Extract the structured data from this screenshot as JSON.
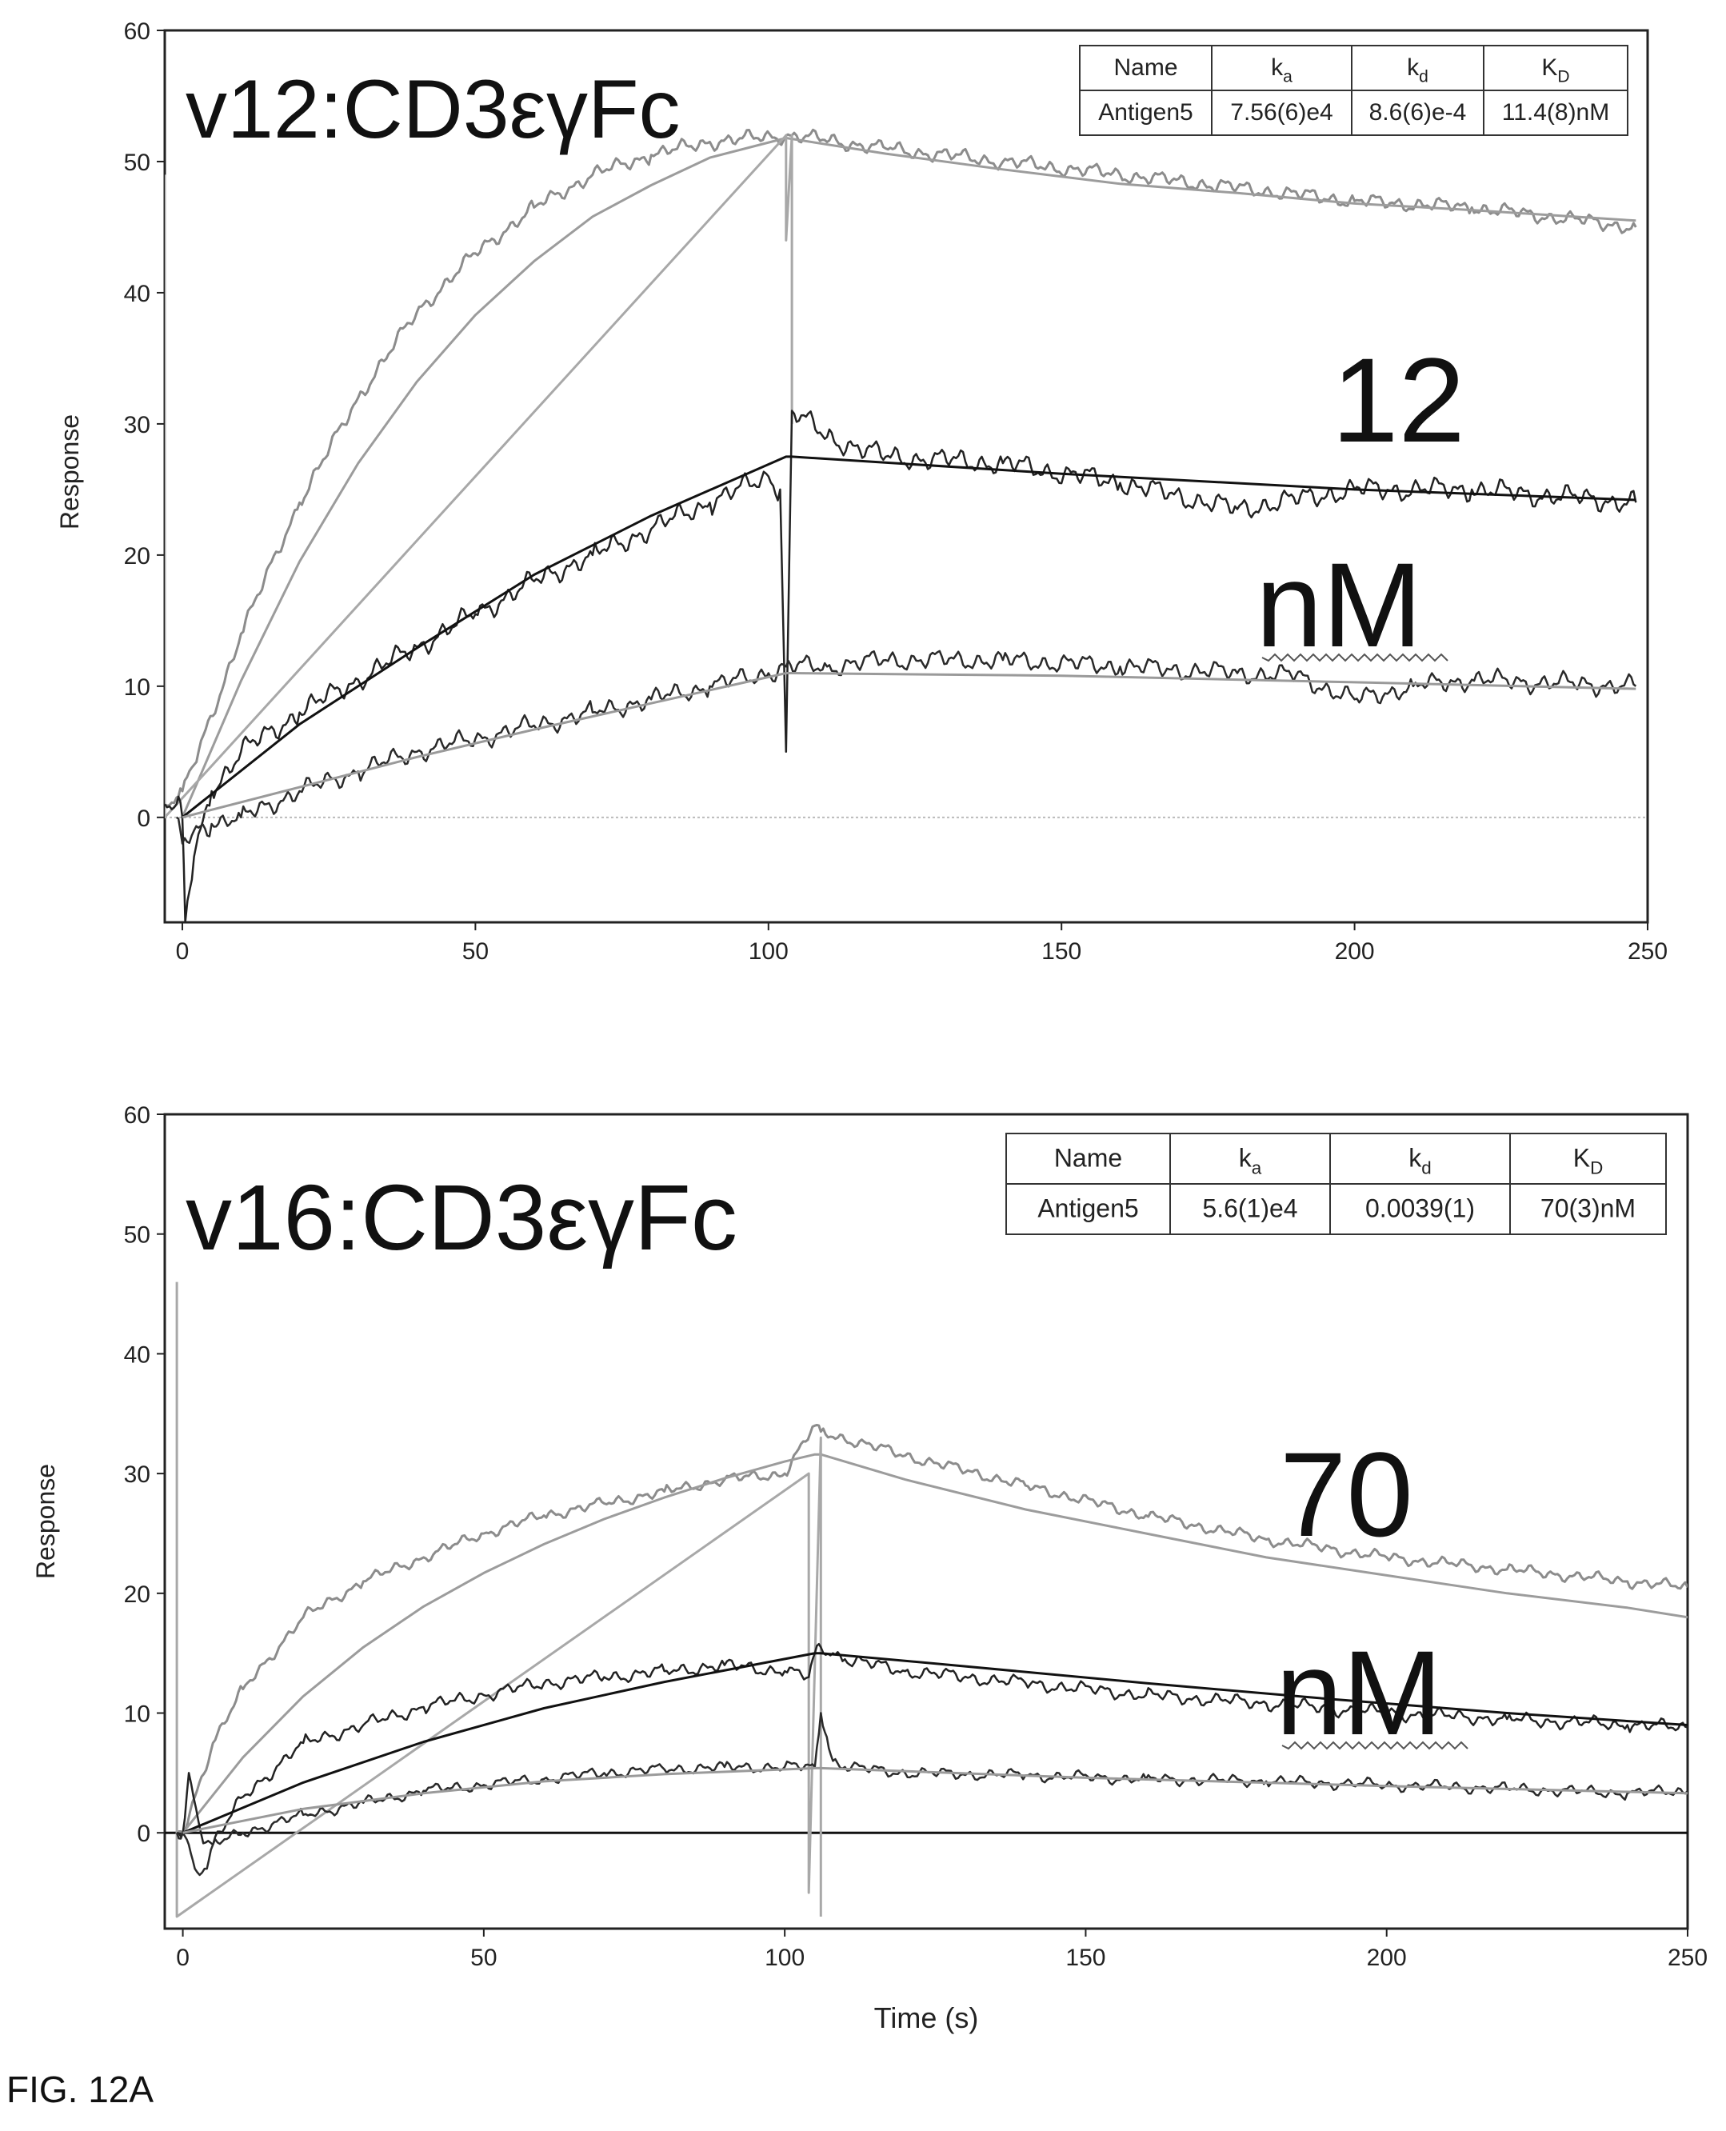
{
  "figure_label": "FIG. 12A",
  "chart_data": [
    {
      "type": "line",
      "title": "v12:CD3εγFc",
      "annotation": [
        "12",
        "nM"
      ],
      "xlabel": "",
      "ylabel": "Response",
      "xlim": [
        -3,
        250
      ],
      "ylim": [
        -8,
        60
      ],
      "xticks": [
        0,
        50,
        100,
        150,
        200,
        250
      ],
      "yticks": [
        0,
        10,
        20,
        30,
        40,
        50,
        60
      ],
      "zero_line": "dotted",
      "injection_marker": {
        "x": 0,
        "y": 49
      },
      "table": {
        "headers": [
          "Name",
          "k",
          "k",
          "K"
        ],
        "header_subscripts": [
          "",
          "a",
          "d",
          "D"
        ],
        "row": [
          "Antigen5",
          "7.56(6)e4",
          "8.6(6)e-4",
          "11.4(8)nM"
        ]
      },
      "series": [
        {
          "color": "#8c8c8c",
          "width": 3,
          "noise": 0.6,
          "phase": 1,
          "x": [
            -3,
            -1,
            0,
            2,
            10,
            20,
            30,
            40,
            50,
            60,
            70,
            80,
            90,
            103,
            104,
            120,
            140,
            160,
            180,
            200,
            220,
            248
          ],
          "y": [
            1,
            1.5,
            2,
            4,
            14,
            24,
            32,
            38.5,
            43,
            46.5,
            49,
            50.5,
            51.5,
            52,
            52,
            51,
            50,
            49,
            48,
            47,
            46.5,
            45
          ]
        },
        {
          "color": "#9c9c9c",
          "width": 3,
          "noise": 0,
          "x": [
            0,
            10,
            20,
            30,
            40,
            50,
            60,
            70,
            80,
            90,
            103,
            120,
            140,
            160,
            180,
            200,
            220,
            248
          ],
          "y": [
            0,
            10.4,
            19.5,
            27,
            33.2,
            38.3,
            42.4,
            45.8,
            48.2,
            50.3,
            51.8,
            50.6,
            49.4,
            48.3,
            47.6,
            46.8,
            46.3,
            45.5
          ]
        },
        {
          "color": "#a8a8a8",
          "width": 3,
          "noise": 0,
          "x": [
            -3,
            -3,
            103,
            103,
            104,
            104
          ],
          "y": [
            49,
            0,
            52,
            44,
            52,
            30
          ]
        },
        {
          "color": "#222222",
          "width": 2.5,
          "noise": 0.9,
          "phase": 2,
          "x": [
            -3,
            -1,
            0,
            0.5,
            2,
            5,
            10,
            20,
            30,
            40,
            50,
            60,
            70,
            80,
            90,
            100,
            102,
            103,
            104,
            110,
            120,
            140,
            160,
            180,
            200,
            220,
            248
          ],
          "y": [
            1,
            1,
            0,
            -8,
            -3,
            2,
            5,
            8,
            10.5,
            13,
            15.5,
            18,
            20,
            22,
            24,
            26,
            25,
            5,
            31,
            29,
            27.5,
            27,
            25.5,
            23.5,
            25,
            25,
            24
          ]
        },
        {
          "color": "#111111",
          "width": 3,
          "noise": 0,
          "x": [
            0,
            20,
            40,
            60,
            80,
            103,
            104,
            150,
            200,
            248
          ],
          "y": [
            0,
            7.1,
            12.9,
            18.5,
            23,
            27.5,
            27.5,
            26.2,
            25,
            24.2
          ]
        },
        {
          "color": "#2a2a2a",
          "width": 2.5,
          "noise": 0.8,
          "phase": 3,
          "x": [
            -1,
            0,
            2,
            5,
            10,
            20,
            30,
            40,
            50,
            60,
            70,
            80,
            90,
            100,
            103,
            110,
            120,
            140,
            160,
            180,
            190,
            200,
            210,
            220,
            248
          ],
          "y": [
            0,
            -2,
            -1,
            -0.5,
            0,
            2,
            3.5,
            5,
            6,
            7,
            8,
            9,
            10,
            11,
            11.5,
            11.5,
            12,
            12,
            11.5,
            11,
            10.8,
            9,
            10,
            10.5,
            10
          ]
        },
        {
          "color": "#9a9a9a",
          "width": 3,
          "noise": 0,
          "x": [
            0,
            20,
            40,
            60,
            80,
            103,
            104,
            150,
            200,
            248
          ],
          "y": [
            0,
            2.3,
            4.6,
            6.7,
            8.7,
            11,
            11,
            10.8,
            10.3,
            9.8
          ]
        }
      ]
    },
    {
      "type": "line",
      "title": "v16:CD3εγFc",
      "annotation": [
        "70",
        "nM"
      ],
      "xlabel": "Time (s)",
      "ylabel": "Response",
      "xlim": [
        -3,
        250
      ],
      "ylim": [
        -8,
        60
      ],
      "xticks": [
        0,
        50,
        100,
        150,
        200,
        250
      ],
      "yticks": [
        0,
        10,
        20,
        30,
        40,
        50,
        60
      ],
      "zero_line": "solid",
      "injection_marker": {
        "x": 0,
        "y": 46
      },
      "table": {
        "headers": [
          "Name",
          "k",
          "k",
          "K"
        ],
        "header_subscripts": [
          "",
          "a",
          "d",
          "D"
        ],
        "row": [
          "Antigen5",
          "5.6(1)e4",
          "0.0039(1)",
          "70(3)nM"
        ]
      },
      "series": [
        {
          "color": "#8c8c8c",
          "width": 3,
          "noise": 0.5,
          "phase": 4,
          "x": [
            -1,
            0,
            2,
            5,
            10,
            20,
            30,
            40,
            50,
            60,
            70,
            80,
            90,
            100,
            105,
            106,
            120,
            140,
            160,
            180,
            200,
            220,
            240,
            250
          ],
          "y": [
            0,
            0,
            3,
            7.5,
            12,
            18,
            21,
            23,
            25,
            26.5,
            27.5,
            28.5,
            29.5,
            30,
            34,
            33.5,
            31.5,
            29,
            26.5,
            24.5,
            23,
            22,
            21,
            20.5
          ]
        },
        {
          "color": "#9c9c9c",
          "width": 3,
          "noise": 0,
          "x": [
            0,
            10,
            20,
            30,
            40,
            50,
            60,
            70,
            80,
            90,
            100,
            105,
            106,
            120,
            140,
            160,
            180,
            200,
            220,
            240,
            250
          ],
          "y": [
            0,
            6.3,
            11.4,
            15.5,
            18.9,
            21.7,
            24.1,
            26.2,
            28.0,
            29.6,
            31.0,
            31.6,
            31.6,
            29.5,
            27.0,
            25.0,
            23.0,
            21.5,
            20.0,
            18.8,
            18
          ]
        },
        {
          "color": "#a8a8a8",
          "width": 3,
          "noise": 0,
          "x": [
            -1,
            -1,
            104,
            104,
            106,
            106
          ],
          "y": [
            46,
            -7,
            30,
            -5,
            33,
            -7
          ]
        },
        {
          "color": "#222222",
          "width": 2.5,
          "noise": 0.6,
          "phase": 5,
          "x": [
            -1,
            0,
            1,
            3,
            5,
            10,
            20,
            30,
            40,
            50,
            60,
            70,
            80,
            90,
            100,
            104,
            105,
            106,
            108,
            110,
            120,
            140,
            160,
            180,
            200,
            220,
            240,
            250
          ],
          "y": [
            0,
            0,
            5,
            0,
            -1,
            3,
            7.5,
            9,
            10.5,
            11.5,
            12.5,
            13,
            13.5,
            14,
            13.5,
            13,
            15,
            15.5,
            15,
            14.5,
            13.5,
            12.5,
            11.5,
            10.8,
            10,
            9.5,
            9,
            8.8
          ]
        },
        {
          "color": "#111111",
          "width": 3,
          "noise": 0,
          "x": [
            0,
            20,
            40,
            60,
            80,
            105,
            106,
            130,
            160,
            190,
            220,
            250
          ],
          "y": [
            0,
            4.2,
            7.6,
            10.4,
            12.6,
            15,
            15,
            13.9,
            12.5,
            11.2,
            10,
            9
          ]
        },
        {
          "color": "#2a2a2a",
          "width": 2.5,
          "noise": 0.5,
          "phase": 6,
          "x": [
            -1,
            0,
            1,
            2,
            4,
            5,
            10,
            20,
            30,
            40,
            50,
            60,
            70,
            80,
            90,
            100,
            105,
            106,
            107,
            108,
            110,
            120,
            140,
            160,
            180,
            200,
            220,
            240,
            250
          ],
          "y": [
            0,
            0,
            -1,
            -3,
            -3,
            -1,
            0,
            1.5,
            2.5,
            3.5,
            4,
            4.5,
            5,
            5.3,
            5.5,
            5.5,
            5.5,
            10,
            8,
            6,
            5.5,
            5,
            4.8,
            4.5,
            4.3,
            4,
            3.7,
            3.3,
            3.5
          ]
        },
        {
          "color": "#9a9a9a",
          "width": 3,
          "noise": 0,
          "x": [
            0,
            20,
            40,
            60,
            80,
            105,
            106,
            150,
            200,
            250
          ],
          "y": [
            0,
            2,
            3.3,
            4.3,
            4.9,
            5.4,
            5.4,
            4.6,
            3.9,
            3.3
          ]
        }
      ]
    }
  ]
}
